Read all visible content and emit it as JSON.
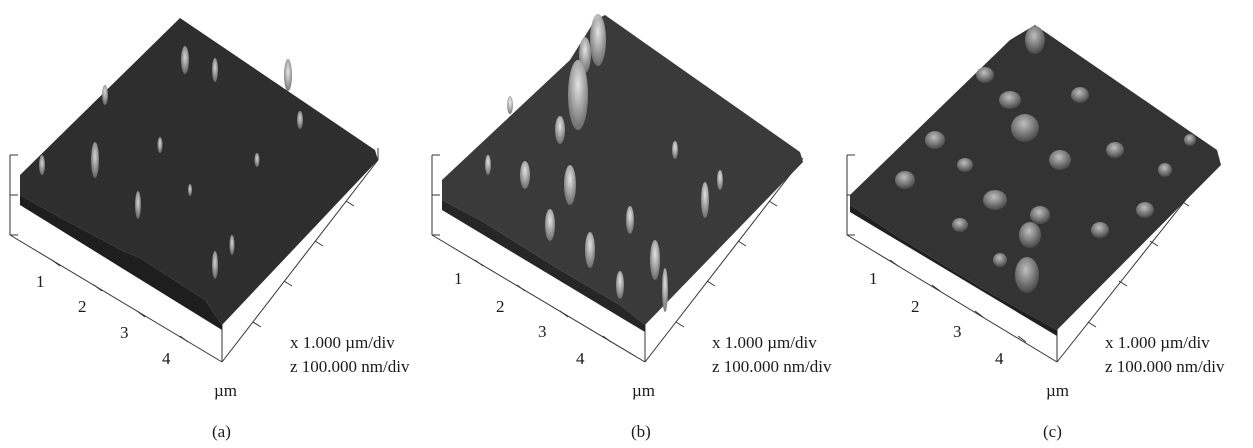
{
  "panels": [
    {
      "caption": "(a)",
      "tick_labels": [
        "1",
        "2",
        "3",
        "4"
      ],
      "unit": "µm",
      "x_scale": "x 1.000 µm/div",
      "z_scale": "z 100.000 nm/div",
      "surface_color": "#2e2e2e"
    },
    {
      "caption": "(b)",
      "tick_labels": [
        "1",
        "2",
        "3",
        "4"
      ],
      "unit": "µm",
      "x_scale": "x 1.000 µm/div",
      "z_scale": "z 100.000 nm/div",
      "surface_color": "#3a3a3a"
    },
    {
      "caption": "(c)",
      "tick_labels": [
        "1",
        "2",
        "3",
        "4"
      ],
      "unit": "µm",
      "x_scale": "x 1.000 µm/div",
      "z_scale": "z 100.000 nm/div",
      "surface_color": "#333333"
    }
  ]
}
